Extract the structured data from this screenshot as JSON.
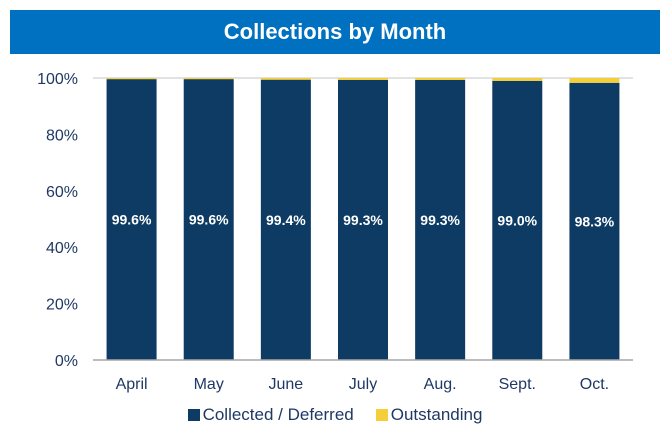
{
  "colors": {
    "title_bg": "#0070C0",
    "collected": "#0D3B63",
    "outstanding": "#F5CF3A",
    "text": "#1F3864"
  },
  "chart_data": {
    "type": "bar",
    "stacked": true,
    "title": "Collections by Month",
    "categories": [
      "April",
      "May",
      "June",
      "July",
      "Aug.",
      "Sept.",
      "Oct."
    ],
    "series": [
      {
        "name": "Collected / Deferred",
        "values": [
          99.6,
          99.6,
          99.4,
          99.3,
          99.3,
          99.0,
          98.3
        ],
        "labels": [
          "99.6%",
          "99.6%",
          "99.4%",
          "99.3%",
          "99.3%",
          "99.0%",
          "98.3%"
        ]
      },
      {
        "name": "Outstanding",
        "values": [
          0.4,
          0.4,
          0.6,
          0.7,
          0.7,
          1.0,
          1.7
        ]
      }
    ],
    "ylim": [
      0,
      100
    ],
    "yticks": [
      0,
      20,
      40,
      60,
      80,
      100
    ],
    "ytick_labels": [
      "0%",
      "20%",
      "40%",
      "60%",
      "80%",
      "100%"
    ],
    "xlabel": "",
    "ylabel": "",
    "legend": "bottom-center",
    "grid": false
  }
}
